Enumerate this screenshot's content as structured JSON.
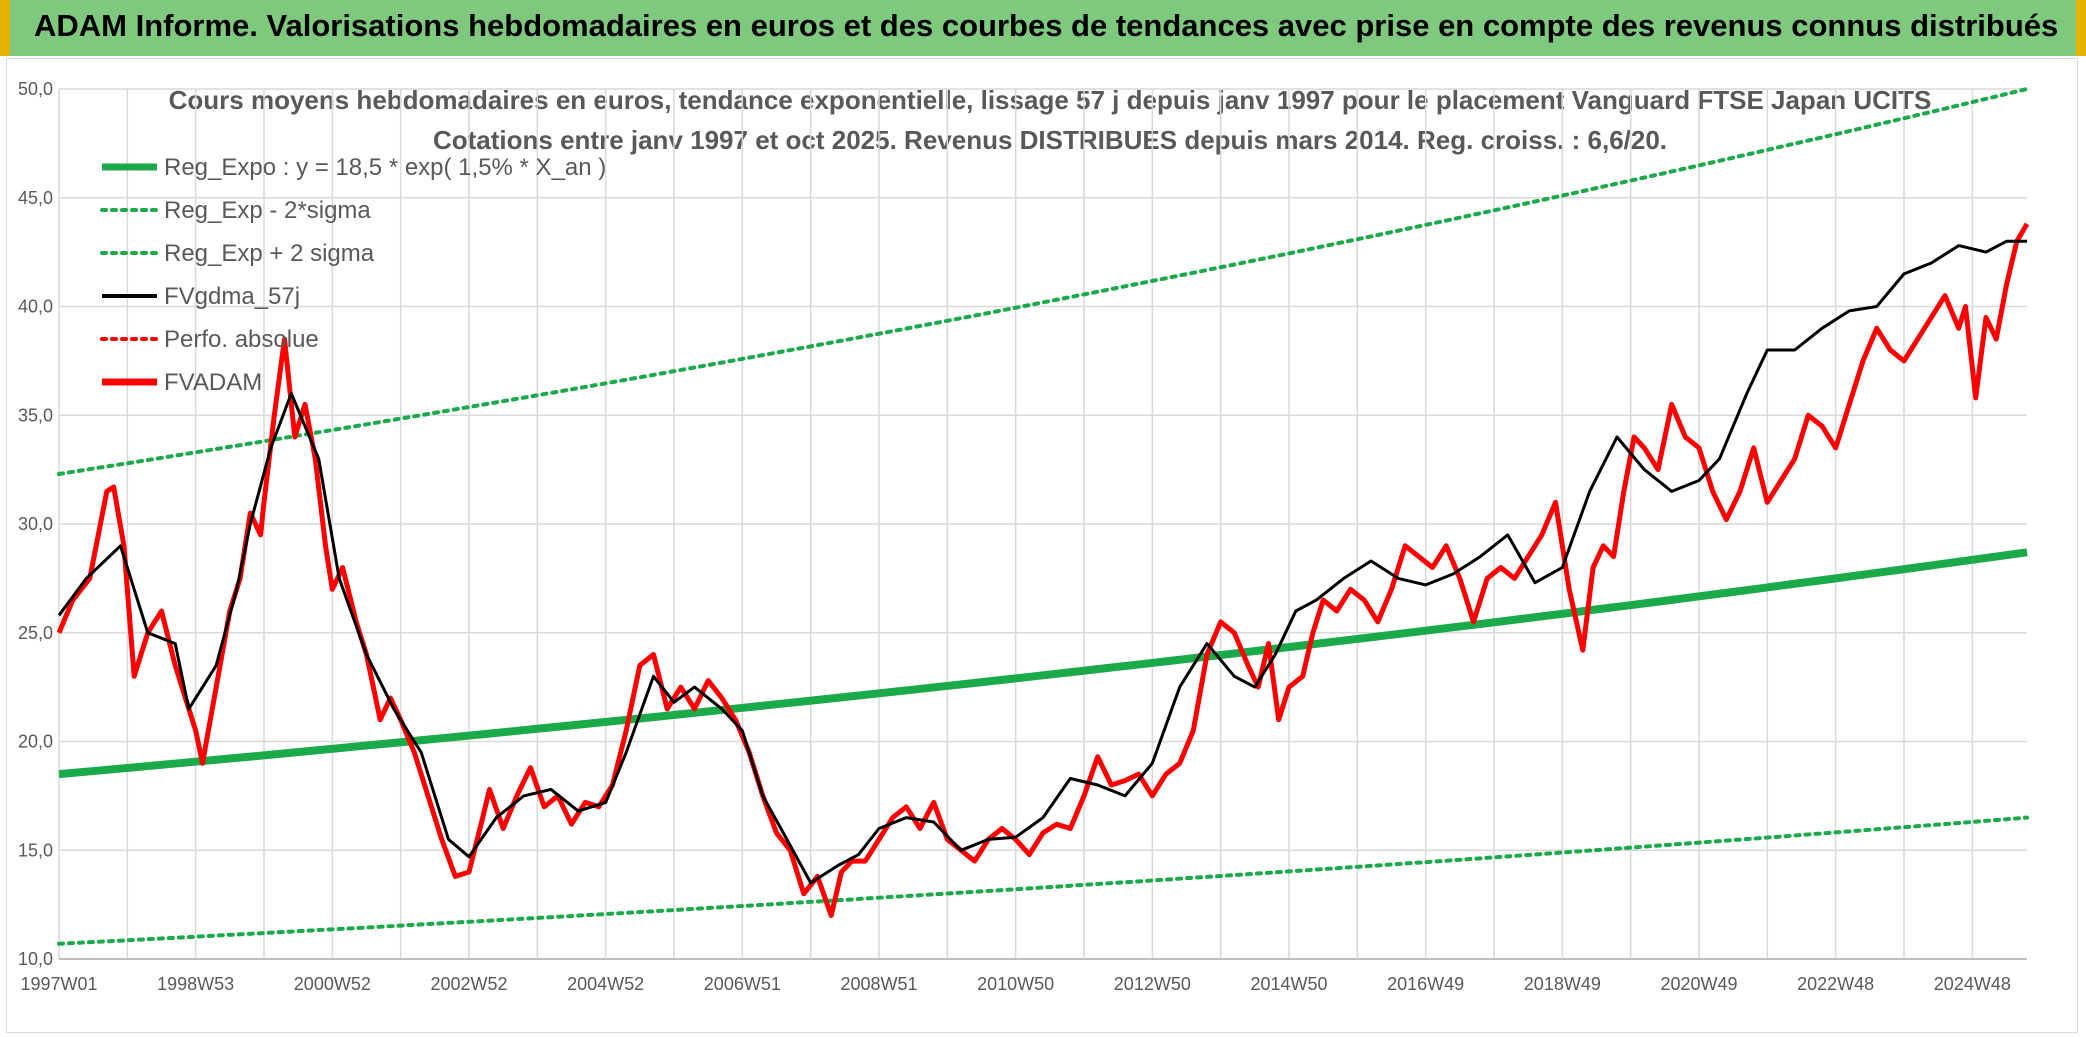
{
  "header": {
    "title": "ADAM Informe. Valorisations hebdomadaires en euros et des courbes de tendances avec prise en compte des revenus connus distribués"
  },
  "colors": {
    "header_bg": "#7fc97f",
    "accent_yellow": "#e8b300",
    "regression_green": "#1aaa4a",
    "price_red": "#ff0000",
    "smooth_black": "#000000",
    "grid": "#d9d9d9"
  },
  "chart_data": {
    "type": "line",
    "title_line1": "Cours moyens hebdomadaires en euros, tendance exponentielle, lissage 57 j depuis janv 1997 pour le placement Vanguard FTSE Japan UCITS",
    "title_line2": "Cotations entre janv 1997 et oct 2025. Revenus DISTRIBUES depuis mars 2014. Reg. croiss. : 6,6/20.",
    "ylim": [
      10,
      50
    ],
    "yticks": [
      "10,0",
      "15,0",
      "20,0",
      "25,0",
      "30,0",
      "35,0",
      "40,0",
      "45,0",
      "50,0"
    ],
    "ytick_values": [
      10,
      15,
      20,
      25,
      30,
      35,
      40,
      45,
      50
    ],
    "xlim": [
      1997.0,
      2025.8
    ],
    "xticks": [
      "1997W01",
      "1998W53",
      "2000W52",
      "2002W52",
      "2004W52",
      "2006W51",
      "2008W51",
      "2010W50",
      "2012W50",
      "2014W50",
      "2016W49",
      "2018W49",
      "2020W49",
      "2022W48",
      "2024W48"
    ],
    "xtick_values": [
      1997.0,
      1999.0,
      2001.0,
      2003.0,
      2005.0,
      2007.0,
      2009.0,
      2011.0,
      2013.0,
      2015.0,
      2017.0,
      2019.0,
      2021.0,
      2023.0,
      2025.0
    ],
    "grid": true,
    "legend_position": "top-left",
    "legend": [
      {
        "label": "Reg_Expo : y = 18,5 * exp( 1,5% *  X_an )",
        "style": "solid-thick",
        "color": "#1aaa4a"
      },
      {
        "label": "Reg_Exp - 2*sigma",
        "style": "dotted",
        "color": "#1aaa4a"
      },
      {
        "label": "Reg_Exp + 2 sigma",
        "style": "dotted",
        "color": "#1aaa4a"
      },
      {
        "label": "FVgdma_57j",
        "style": "solid",
        "color": "#000000"
      },
      {
        "label": "Perfo. absolue",
        "style": "dotted",
        "color": "#ff0000"
      },
      {
        "label": "FVADAM",
        "style": "solid-thick",
        "color": "#ff0000"
      }
    ],
    "series": [
      {
        "name": "Reg_Expo : y = 18,5 * exp( 1,5% *  X_an )",
        "x": [
          1997.0,
          2025.8
        ],
        "values": [
          18.5,
          28.7
        ]
      },
      {
        "name": "Reg_Exp - 2*sigma",
        "x": [
          1997.0,
          2025.8
        ],
        "values": [
          10.7,
          16.5
        ]
      },
      {
        "name": "Reg_Exp + 2 sigma",
        "x": [
          1997.0,
          2025.8
        ],
        "values": [
          32.3,
          50.0
        ]
      },
      {
        "name": "FVgdma_57j",
        "x": [
          1997.0,
          1997.4,
          1997.9,
          1998.3,
          1998.7,
          1998.9,
          1999.3,
          1999.6,
          1999.8,
          2000.1,
          2000.4,
          2000.8,
          2001.1,
          2001.5,
          2001.9,
          2002.3,
          2002.7,
          2003.0,
          2003.4,
          2003.8,
          2004.2,
          2004.6,
          2005.0,
          2005.3,
          2005.7,
          2006.0,
          2006.3,
          2006.7,
          2007.0,
          2007.3,
          2007.6,
          2008.0,
          2008.4,
          2008.7,
          2009.0,
          2009.4,
          2009.8,
          2010.2,
          2010.6,
          2011.0,
          2011.4,
          2011.8,
          2012.2,
          2012.6,
          2013.0,
          2013.4,
          2013.8,
          2014.2,
          2014.5,
          2014.8,
          2015.1,
          2015.4,
          2015.8,
          2016.2,
          2016.6,
          2017.0,
          2017.4,
          2017.8,
          2018.2,
          2018.6,
          2019.0,
          2019.4,
          2019.8,
          2020.2,
          2020.6,
          2021.0,
          2021.3,
          2021.7,
          2022.0,
          2022.4,
          2022.8,
          2023.2,
          2023.6,
          2024.0,
          2024.4,
          2024.8,
          2025.2,
          2025.5,
          2025.8
        ],
        "values": [
          25.8,
          27.5,
          29.0,
          25.0,
          24.5,
          21.5,
          23.5,
          27.0,
          30.0,
          33.5,
          36.0,
          33.0,
          27.5,
          24.0,
          21.5,
          19.5,
          15.5,
          14.7,
          16.5,
          17.5,
          17.8,
          16.8,
          17.2,
          19.5,
          23.0,
          21.8,
          22.5,
          21.5,
          20.5,
          17.5,
          15.8,
          13.5,
          14.3,
          14.8,
          16.0,
          16.5,
          16.3,
          15.0,
          15.5,
          15.6,
          16.5,
          18.3,
          18.0,
          17.5,
          19.0,
          22.5,
          24.5,
          23.0,
          22.5,
          24.0,
          26.0,
          26.5,
          27.5,
          28.3,
          27.5,
          27.2,
          27.7,
          28.5,
          29.5,
          27.3,
          28.0,
          31.5,
          34.0,
          32.5,
          31.5,
          32.0,
          33.0,
          36.0,
          38.0,
          38.0,
          39.0,
          39.8,
          40.0,
          41.5,
          42.0,
          42.8,
          42.5,
          43.0,
          43.0
        ]
      },
      {
        "name": "FVADAM",
        "x": [
          1997.0,
          1997.2,
          1997.45,
          1997.7,
          1997.8,
          1997.95,
          1998.1,
          1998.3,
          1998.5,
          1998.7,
          1998.85,
          1999.0,
          1999.1,
          1999.3,
          1999.5,
          1999.65,
          1999.8,
          1999.95,
          2000.0,
          2000.15,
          2000.3,
          2000.45,
          2000.6,
          2000.75,
          2000.9,
          2001.0,
          2001.15,
          2001.35,
          2001.5,
          2001.7,
          2001.85,
          2002.0,
          2002.2,
          2002.4,
          2002.6,
          2002.8,
          2003.0,
          2003.2,
          2003.3,
          2003.5,
          2003.7,
          2003.9,
          2004.1,
          2004.3,
          2004.5,
          2004.7,
          2004.9,
          2005.1,
          2005.3,
          2005.5,
          2005.7,
          2005.9,
          2006.1,
          2006.3,
          2006.5,
          2006.7,
          2006.9,
          2007.1,
          2007.3,
          2007.5,
          2007.7,
          2007.9,
          2008.1,
          2008.3,
          2008.45,
          2008.6,
          2008.8,
          2009.0,
          2009.2,
          2009.4,
          2009.6,
          2009.8,
          2010.0,
          2010.2,
          2010.4,
          2010.6,
          2010.8,
          2011.0,
          2011.2,
          2011.4,
          2011.6,
          2011.8,
          2012.0,
          2012.2,
          2012.4,
          2012.6,
          2012.8,
          2013.0,
          2013.2,
          2013.4,
          2013.6,
          2013.8,
          2014.0,
          2014.2,
          2014.4,
          2014.55,
          2014.7,
          2014.85,
          2015.0,
          2015.2,
          2015.35,
          2015.5,
          2015.7,
          2015.9,
          2016.1,
          2016.3,
          2016.5,
          2016.7,
          2016.9,
          2017.1,
          2017.3,
          2017.5,
          2017.7,
          2017.9,
          2018.1,
          2018.3,
          2018.5,
          2018.7,
          2018.9,
          2019.1,
          2019.3,
          2019.45,
          2019.6,
          2019.75,
          2019.9,
          2020.05,
          2020.2,
          2020.4,
          2020.6,
          2020.8,
          2021.0,
          2021.2,
          2021.4,
          2021.6,
          2021.8,
          2022.0,
          2022.2,
          2022.4,
          2022.6,
          2022.8,
          2023.0,
          2023.2,
          2023.4,
          2023.6,
          2023.8,
          2024.0,
          2024.2,
          2024.4,
          2024.6,
          2024.8,
          2024.9,
          2025.05,
          2025.2,
          2025.35,
          2025.5,
          2025.65,
          2025.8
        ],
        "values": [
          25.0,
          26.5,
          27.5,
          31.5,
          31.7,
          29.0,
          23.0,
          25.0,
          26.0,
          23.5,
          22.0,
          20.5,
          19.0,
          22.5,
          26.0,
          27.5,
          30.5,
          29.5,
          31.0,
          35.0,
          38.5,
          34.0,
          35.5,
          33.0,
          29.0,
          27.0,
          28.0,
          25.5,
          24.0,
          21.0,
          22.0,
          21.0,
          19.5,
          17.5,
          15.5,
          13.8,
          14.0,
          16.5,
          17.8,
          16.0,
          17.5,
          18.8,
          17.0,
          17.5,
          16.2,
          17.2,
          17.0,
          18.0,
          20.5,
          23.5,
          24.0,
          21.5,
          22.5,
          21.5,
          22.8,
          22.0,
          21.0,
          19.5,
          17.5,
          15.8,
          15.0,
          13.0,
          13.8,
          12.0,
          14.0,
          14.5,
          14.5,
          15.5,
          16.5,
          17.0,
          16.0,
          17.2,
          15.5,
          15.0,
          14.5,
          15.5,
          16.0,
          15.5,
          14.8,
          15.8,
          16.2,
          16.0,
          17.5,
          19.3,
          18.0,
          18.2,
          18.5,
          17.5,
          18.5,
          19.0,
          20.5,
          24.0,
          25.5,
          25.0,
          23.5,
          22.5,
          24.5,
          21.0,
          22.5,
          23.0,
          25.0,
          26.5,
          26.0,
          27.0,
          26.5,
          25.5,
          27.0,
          29.0,
          28.5,
          28.0,
          29.0,
          27.5,
          25.5,
          27.5,
          28.0,
          27.5,
          28.5,
          29.5,
          31.0,
          27.0,
          24.2,
          28.0,
          29.0,
          28.5,
          31.5,
          34.0,
          33.5,
          32.5,
          35.5,
          34.0,
          33.5,
          31.5,
          30.2,
          31.5,
          33.5,
          31.0,
          32.0,
          33.0,
          35.0,
          34.5,
          33.5,
          35.5,
          37.5,
          39.0,
          38.0,
          37.5,
          38.5,
          39.5,
          40.5,
          39.0,
          40.0,
          35.8,
          39.5,
          38.5,
          41.0,
          43.0,
          43.8
        ]
      }
    ]
  }
}
